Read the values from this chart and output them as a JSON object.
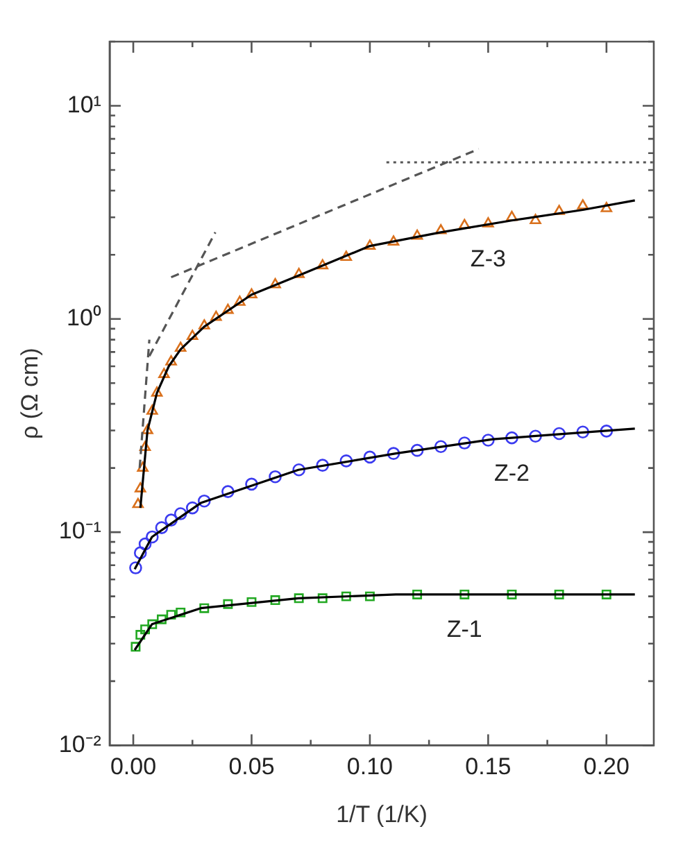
{
  "chart_data": {
    "type": "scatter",
    "xlabel": "1/T (1/K)",
    "ylabel": "ρ (Ω cm)",
    "log": "y",
    "grid": false,
    "legend": false,
    "xlim": [
      -0.01,
      0.22
    ],
    "xticks": [
      {
        "value": 0,
        "label": "0.00"
      },
      {
        "value": 0.025,
        "label": null
      },
      {
        "value": 0.05,
        "label": "0.05"
      },
      {
        "value": 0.075,
        "label": null
      },
      {
        "value": 0.1,
        "label": "0.10"
      },
      {
        "value": 0.125,
        "label": null
      },
      {
        "value": 0.15,
        "label": "0.15"
      },
      {
        "value": 0.175,
        "label": null
      },
      {
        "value": 0.2,
        "label": "0.20"
      }
    ],
    "ylim": [
      0.01,
      20
    ],
    "yticks": [
      {
        "value": 0.01,
        "label": "10⁻²"
      },
      {
        "value": 0.02,
        "label": null
      },
      {
        "value": 0.03,
        "label": null
      },
      {
        "value": 0.04,
        "label": null
      },
      {
        "value": 0.05,
        "label": null
      },
      {
        "value": 0.06,
        "label": null
      },
      {
        "value": 0.07,
        "label": null
      },
      {
        "value": 0.08,
        "label": null
      },
      {
        "value": 0.09,
        "label": null
      },
      {
        "value": 0.1,
        "label": "10⁻¹"
      },
      {
        "value": 0.2,
        "label": null
      },
      {
        "value": 0.3,
        "label": null
      },
      {
        "value": 0.4,
        "label": null
      },
      {
        "value": 0.5,
        "label": null
      },
      {
        "value": 0.6,
        "label": null
      },
      {
        "value": 0.7,
        "label": null
      },
      {
        "value": 0.8,
        "label": null
      },
      {
        "value": 0.9,
        "label": null
      },
      {
        "value": 1,
        "label": "10⁰"
      },
      {
        "value": 2,
        "label": null
      },
      {
        "value": 3,
        "label": null
      },
      {
        "value": 4,
        "label": null
      },
      {
        "value": 5,
        "label": null
      },
      {
        "value": 6,
        "label": null
      },
      {
        "value": 7,
        "label": null
      },
      {
        "value": 8,
        "label": null
      },
      {
        "value": 9,
        "label": null
      },
      {
        "value": 10,
        "label": "10¹"
      },
      {
        "value": 20,
        "label": null
      }
    ],
    "series": [
      {
        "type": "scatter",
        "name": "Z-3",
        "color": "#d9701c",
        "marker": "triangle",
        "x": [
          0.002,
          0.003,
          0.004,
          0.005,
          0.006,
          0.008,
          0.01,
          0.013,
          0.016,
          0.02,
          0.025,
          0.03,
          0.035,
          0.04,
          0.045,
          0.05,
          0.06,
          0.07,
          0.08,
          0.09,
          0.1,
          0.11,
          0.12,
          0.13,
          0.14,
          0.15,
          0.16,
          0.17,
          0.18,
          0.19,
          0.2
        ],
        "values": [
          0.135,
          0.16,
          0.2,
          0.25,
          0.3,
          0.37,
          0.45,
          0.55,
          0.63,
          0.73,
          0.83,
          0.93,
          1.02,
          1.1,
          1.2,
          1.3,
          1.45,
          1.62,
          1.78,
          1.95,
          2.2,
          2.3,
          2.45,
          2.6,
          2.75,
          2.8,
          3.0,
          2.9,
          3.2,
          3.4,
          3.3
        ]
      },
      {
        "type": "scatter",
        "name": "Z-2",
        "color": "#3b3bf0",
        "marker": "circle",
        "x": [
          0.001,
          0.003,
          0.005,
          0.008,
          0.012,
          0.016,
          0.02,
          0.025,
          0.03,
          0.04,
          0.05,
          0.06,
          0.07,
          0.08,
          0.09,
          0.1,
          0.11,
          0.12,
          0.13,
          0.14,
          0.15,
          0.16,
          0.17,
          0.18,
          0.19,
          0.2
        ],
        "values": [
          0.068,
          0.08,
          0.088,
          0.095,
          0.105,
          0.114,
          0.122,
          0.13,
          0.14,
          0.155,
          0.168,
          0.182,
          0.196,
          0.206,
          0.216,
          0.225,
          0.234,
          0.242,
          0.252,
          0.262,
          0.27,
          0.277,
          0.282,
          0.29,
          0.295,
          0.298
        ]
      },
      {
        "type": "scatter",
        "name": "Z-1",
        "color": "#22a822",
        "marker": "square",
        "x": [
          0.001,
          0.003,
          0.005,
          0.008,
          0.012,
          0.016,
          0.02,
          0.03,
          0.04,
          0.05,
          0.06,
          0.07,
          0.08,
          0.09,
          0.1,
          0.12,
          0.14,
          0.16,
          0.18,
          0.2
        ],
        "values": [
          0.029,
          0.033,
          0.035,
          0.037,
          0.039,
          0.041,
          0.042,
          0.044,
          0.046,
          0.047,
          0.048,
          0.049,
          0.049,
          0.05,
          0.05,
          0.051,
          0.051,
          0.051,
          0.051,
          0.051
        ]
      },
      {
        "type": "line",
        "color": "#000000",
        "marker": "none",
        "line_style": "solid",
        "x": [
          0.003,
          0.006,
          0.01,
          0.015,
          0.02,
          0.03,
          0.05,
          0.07,
          0.1,
          0.13,
          0.16,
          0.19,
          0.212
        ],
        "values": [
          0.13,
          0.3,
          0.45,
          0.6,
          0.72,
          0.92,
          1.3,
          1.6,
          2.2,
          2.55,
          2.9,
          3.25,
          3.6
        ]
      },
      {
        "type": "line",
        "color": "#000000",
        "marker": "none",
        "line_style": "solid",
        "x": [
          0.0006,
          0.0079,
          0.0285,
          0.0698,
          0.111,
          0.152,
          0.212
        ],
        "values": [
          0.067,
          0.095,
          0.137,
          0.196,
          0.234,
          0.273,
          0.306
        ]
      },
      {
        "type": "line",
        "color": "#000000",
        "marker": "none",
        "line_style": "solid",
        "x": [
          0.0006,
          0.0079,
          0.0285,
          0.0698,
          0.111,
          0.212
        ],
        "values": [
          0.028,
          0.037,
          0.044,
          0.049,
          0.051,
          0.051
        ]
      },
      {
        "type": "line",
        "color": "#555555",
        "marker": "none",
        "line_style": "dashed",
        "x": [
          0.0027,
          0.0068
        ],
        "values": [
          0.2,
          0.8
        ]
      },
      {
        "type": "line",
        "color": "#555555",
        "marker": "none",
        "line_style": "dashed",
        "x": [
          0.0068,
          0.0347
        ],
        "values": [
          0.67,
          2.55
        ]
      },
      {
        "type": "line",
        "color": "#555555",
        "marker": "none",
        "line_style": "dashed",
        "x": [
          0.016,
          0.146
        ],
        "values": [
          1.57,
          6.27
        ]
      },
      {
        "type": "line",
        "color": "#555555",
        "marker": "none",
        "line_style": "dotted",
        "x": [
          0.107,
          0.22
        ],
        "values": [
          5.43,
          5.43
        ]
      }
    ]
  }
}
